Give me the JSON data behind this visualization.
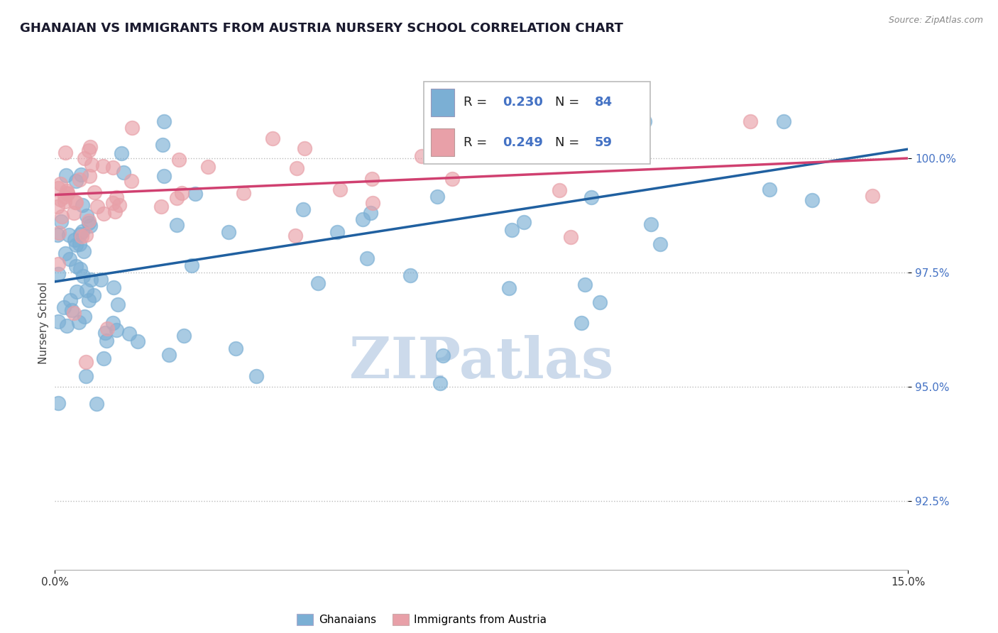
{
  "title": "GHANAIAN VS IMMIGRANTS FROM AUSTRIA NURSERY SCHOOL CORRELATION CHART",
  "source": "Source: ZipAtlas.com",
  "ylabel": "Nursery School",
  "yticks": [
    92.5,
    95.0,
    97.5,
    100.0
  ],
  "ytick_labels": [
    "92.5%",
    "95.0%",
    "97.5%",
    "100.0%"
  ],
  "xticks": [
    0.0,
    15.0
  ],
  "xtick_labels": [
    "0.0%",
    "15.0%"
  ],
  "xlim": [
    0.0,
    15.0
  ],
  "ylim": [
    91.0,
    101.8
  ],
  "blue_R": 0.23,
  "blue_N": 84,
  "pink_R": 0.249,
  "pink_N": 59,
  "blue_color": "#7bafd4",
  "pink_color": "#e8a0a8",
  "blue_line_color": "#2060a0",
  "pink_line_color": "#d04070",
  "legend_blue_label": "Ghanaians",
  "legend_pink_label": "Immigrants from Austria",
  "watermark": "ZIPatlas",
  "watermark_color": "#ccdaeb",
  "blue_line_x0": 0.0,
  "blue_line_y0": 97.3,
  "blue_line_x1": 15.0,
  "blue_line_y1": 100.2,
  "pink_line_x0": 0.0,
  "pink_line_y0": 99.2,
  "pink_line_x1": 15.0,
  "pink_line_y1": 100.0
}
